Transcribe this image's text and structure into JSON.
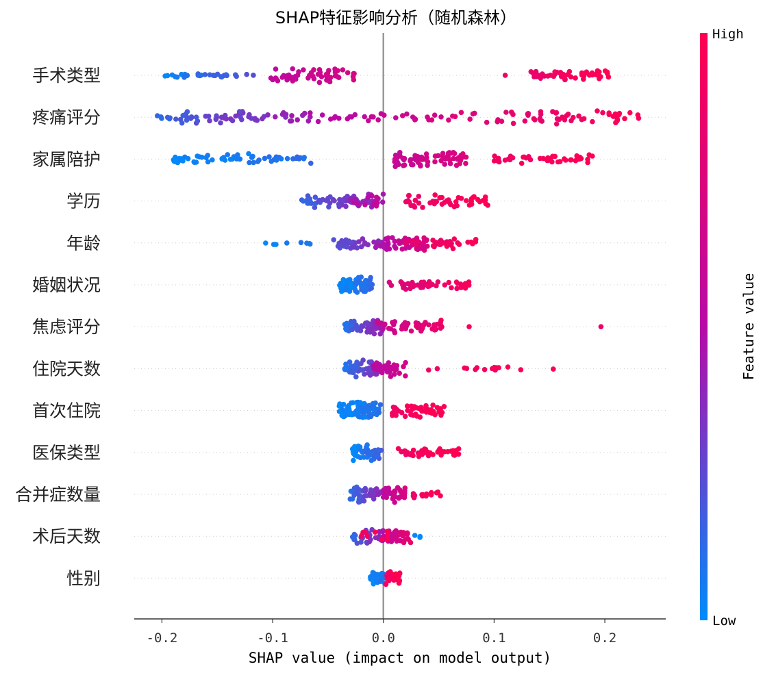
{
  "chart_data": {
    "type": "scatter",
    "title": "SHAP特征影响分析（随机森林）",
    "xlabel": "SHAP value (impact on model output)",
    "xlim": [
      -0.225,
      0.255
    ],
    "xticks": [
      -0.2,
      -0.1,
      0.0,
      0.1,
      0.2
    ],
    "xtick_labels": [
      "-0.2",
      "-0.1",
      "0.0",
      "0.1",
      "0.2"
    ],
    "colorbar": {
      "label": "Feature value",
      "high_label": "High",
      "low_label": "Low",
      "low_color": "#008bfb",
      "high_color": "#ff0052"
    },
    "zero_line": true,
    "features": [
      {
        "name": "手术类型",
        "groups": [
          {
            "min": -0.205,
            "max": -0.115,
            "n": 28,
            "c0": 0.0,
            "c1": 0.25,
            "spread": 0.16
          },
          {
            "min": -0.105,
            "max": -0.025,
            "n": 55,
            "c0": 0.55,
            "c1": 0.7,
            "spread": 0.5
          },
          {
            "min": 0.108,
            "max": 0.112,
            "n": 1,
            "c0": 0.85,
            "c1": 0.85,
            "spread": 0.0
          },
          {
            "min": 0.132,
            "max": 0.205,
            "n": 55,
            "c0": 0.85,
            "c1": 1.0,
            "spread": 0.35
          }
        ]
      },
      {
        "name": "疼痛评分",
        "groups": [
          {
            "min": -0.205,
            "max": -0.13,
            "n": 35,
            "c0": 0.1,
            "c1": 0.35,
            "spread": 0.4
          },
          {
            "min": -0.13,
            "max": -0.05,
            "n": 30,
            "c0": 0.3,
            "c1": 0.5,
            "spread": 0.4
          },
          {
            "min": -0.05,
            "max": 0.07,
            "n": 30,
            "c0": 0.5,
            "c1": 0.75,
            "spread": 0.3
          },
          {
            "min": 0.07,
            "max": 0.235,
            "n": 55,
            "c0": 0.75,
            "c1": 1.0,
            "spread": 0.45
          }
        ]
      },
      {
        "name": "家属陪护",
        "groups": [
          {
            "min": -0.19,
            "max": -0.065,
            "n": 60,
            "c0": 0.0,
            "c1": 0.12,
            "spread": 0.35
          },
          {
            "min": 0.01,
            "max": 0.075,
            "n": 65,
            "c0": 0.6,
            "c1": 0.75,
            "spread": 0.55
          },
          {
            "min": 0.1,
            "max": 0.19,
            "n": 45,
            "c0": 0.9,
            "c1": 1.0,
            "spread": 0.3
          }
        ]
      },
      {
        "name": "学历",
        "groups": [
          {
            "min": -0.075,
            "max": 0.0,
            "n": 70,
            "c0": 0.15,
            "c1": 0.45,
            "spread": 0.45
          },
          {
            "min": -0.03,
            "max": -0.005,
            "n": 15,
            "c0": 0.45,
            "c1": 0.6,
            "spread": 0.4
          },
          {
            "min": 0.02,
            "max": 0.095,
            "n": 45,
            "c0": 0.85,
            "c1": 1.0,
            "spread": 0.45
          }
        ]
      },
      {
        "name": "年龄",
        "groups": [
          {
            "min": -0.11,
            "max": -0.065,
            "n": 8,
            "c0": 0.0,
            "c1": 0.1,
            "spread": 0.2
          },
          {
            "min": -0.045,
            "max": 0.0,
            "n": 40,
            "c0": 0.2,
            "c1": 0.45,
            "spread": 0.4
          },
          {
            "min": 0.0,
            "max": 0.04,
            "n": 55,
            "c0": 0.5,
            "c1": 0.75,
            "spread": 0.5
          },
          {
            "min": 0.02,
            "max": 0.085,
            "n": 35,
            "c0": 0.8,
            "c1": 1.0,
            "spread": 0.4
          }
        ]
      },
      {
        "name": "婚姻状况",
        "groups": [
          {
            "min": -0.04,
            "max": -0.01,
            "n": 65,
            "c0": 0.0,
            "c1": 0.15,
            "spread": 0.55
          },
          {
            "min": 0.005,
            "max": 0.08,
            "n": 45,
            "c0": 0.75,
            "c1": 0.95,
            "spread": 0.3
          }
        ]
      },
      {
        "name": "焦虑评分",
        "groups": [
          {
            "min": -0.035,
            "max": 0.0,
            "n": 70,
            "c0": 0.1,
            "c1": 0.45,
            "spread": 0.5
          },
          {
            "min": -0.005,
            "max": 0.055,
            "n": 50,
            "c0": 0.6,
            "c1": 0.9,
            "spread": 0.45
          },
          {
            "min": 0.075,
            "max": 0.08,
            "n": 1,
            "c0": 0.95,
            "c1": 0.95,
            "spread": 0.0
          },
          {
            "min": 0.195,
            "max": 0.198,
            "n": 1,
            "c0": 0.9,
            "c1": 0.9,
            "spread": 0.0
          }
        ]
      },
      {
        "name": "住院天数",
        "groups": [
          {
            "min": -0.035,
            "max": 0.0,
            "n": 65,
            "c0": 0.1,
            "c1": 0.4,
            "spread": 0.55
          },
          {
            "min": -0.01,
            "max": 0.02,
            "n": 35,
            "c0": 0.5,
            "c1": 0.7,
            "spread": 0.55
          },
          {
            "min": 0.04,
            "max": 0.155,
            "n": 15,
            "c0": 0.9,
            "c1": 1.0,
            "spread": 0.1
          }
        ]
      },
      {
        "name": "首次住院",
        "groups": [
          {
            "min": -0.04,
            "max": -0.002,
            "n": 90,
            "c0": 0.0,
            "c1": 0.1,
            "spread": 0.6
          },
          {
            "min": 0.008,
            "max": 0.055,
            "n": 55,
            "c0": 0.9,
            "c1": 1.0,
            "spread": 0.45
          }
        ]
      },
      {
        "name": "医保类型",
        "groups": [
          {
            "min": -0.028,
            "max": -0.002,
            "n": 55,
            "c0": 0.0,
            "c1": 0.2,
            "spread": 0.55
          },
          {
            "min": 0.012,
            "max": 0.07,
            "n": 40,
            "c0": 0.9,
            "c1": 1.0,
            "spread": 0.3
          }
        ]
      },
      {
        "name": "合并症数量",
        "groups": [
          {
            "min": -0.03,
            "max": 0.0,
            "n": 45,
            "c0": 0.1,
            "c1": 0.45,
            "spread": 0.55
          },
          {
            "min": 0.0,
            "max": 0.02,
            "n": 40,
            "c0": 0.55,
            "c1": 0.75,
            "spread": 0.5
          },
          {
            "min": 0.02,
            "max": 0.052,
            "n": 15,
            "c0": 0.85,
            "c1": 1.0,
            "spread": 0.35
          }
        ]
      },
      {
        "name": "术后天数",
        "groups": [
          {
            "min": -0.028,
            "max": 0.0,
            "n": 35,
            "c0": 0.15,
            "c1": 0.45,
            "spread": 0.5
          },
          {
            "min": 0.0,
            "max": 0.025,
            "n": 40,
            "c0": 0.55,
            "c1": 0.85,
            "spread": 0.5
          },
          {
            "min": -0.02,
            "max": 0.005,
            "n": 10,
            "c0": 0.9,
            "c1": 1.0,
            "spread": 0.35
          },
          {
            "min": 0.028,
            "max": 0.045,
            "n": 3,
            "c0": 0.0,
            "c1": 0.05,
            "spread": 0.1
          }
        ]
      },
      {
        "name": "性别",
        "groups": [
          {
            "min": -0.012,
            "max": 0.002,
            "n": 45,
            "c0": 0.0,
            "c1": 0.1,
            "spread": 0.45
          },
          {
            "min": 0.002,
            "max": 0.015,
            "n": 30,
            "c0": 0.9,
            "c1": 1.0,
            "spread": 0.4
          }
        ]
      }
    ]
  }
}
